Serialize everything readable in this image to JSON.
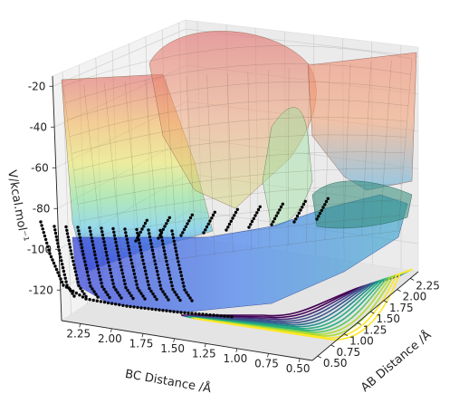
{
  "chart_data": {
    "type": "surface",
    "zlabel": "V/kcal.mol⁻¹",
    "xlabel": "BC Distance /Å",
    "ylabel": "AB Distance /Å",
    "z_ticks": [
      "-20",
      "-40",
      "-60",
      "-80",
      "-100",
      "-120"
    ],
    "z_tick_values": [
      -20,
      -40,
      -60,
      -80,
      -100,
      -120
    ],
    "zlim": [
      -135,
      -15
    ],
    "x_ticks": [
      "2.25",
      "2.00",
      "1.75",
      "1.50",
      "1.25",
      "1.00",
      "0.75",
      "0.50"
    ],
    "x_tick_values": [
      2.25,
      2.0,
      1.75,
      1.5,
      1.25,
      1.0,
      0.75,
      0.5
    ],
    "xlim": [
      2.4,
      0.4
    ],
    "y_ticks": [
      "0.50",
      "0.75",
      "1.00",
      "1.25",
      "1.50",
      "1.75",
      "2.00",
      "2.25"
    ],
    "y_tick_values": [
      0.5,
      0.75,
      1.0,
      1.25,
      1.5,
      1.75,
      2.0,
      2.25
    ],
    "ylim": [
      0.4,
      2.4
    ],
    "grid": true,
    "colormap": "jet-like (blue low → red high)",
    "contour_projection": "viridis contours on floor",
    "trajectory": "black dotted reaction paths along valley"
  }
}
